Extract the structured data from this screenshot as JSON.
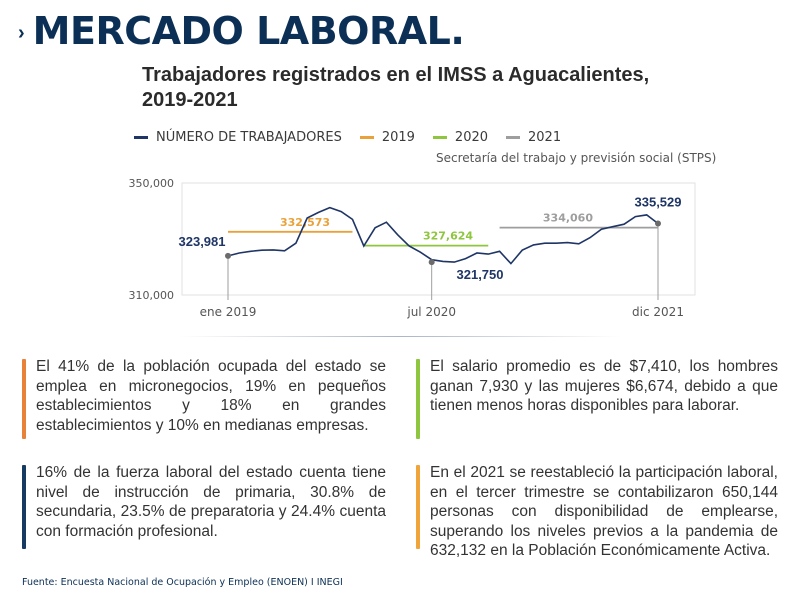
{
  "header": {
    "arrow": "›",
    "title": "MERCADO LABORAL."
  },
  "chart_title": "Trabajadores registrados en el IMSS a Aguacalientes, 2019-2021",
  "legend": [
    {
      "label": "NÚMERO DE TRABAJADORES",
      "color": "#1f3566"
    },
    {
      "label": "2019",
      "color": "#e9a23b"
    },
    {
      "label": "2020",
      "color": "#8fc63f"
    },
    {
      "label": "2021",
      "color": "#9e9e9e"
    }
  ],
  "source_label": "Secretaría del trabajo y previsión social (STPS)",
  "chart_data": {
    "type": "line",
    "title": "Trabajadores registrados en el IMSS a Aguacalientes, 2019-2021",
    "ylim": [
      310000,
      350000
    ],
    "y_ticks": [
      "350,000",
      "310,000"
    ],
    "x_ticks": [
      "ene 2019",
      "jul 2020",
      "dic 2021"
    ],
    "series": [
      {
        "name": "NÚMERO DE TRABAJADORES",
        "values": [
          323981,
          325000,
          325600,
          326000,
          326100,
          325800,
          328500,
          337500,
          339500,
          341200,
          339800,
          337000,
          327500,
          334000,
          336000,
          331500,
          327500,
          325300,
          322600,
          322000,
          321750,
          323000,
          325000,
          324600,
          325600,
          321200,
          326000,
          327900,
          328500,
          328500,
          328700,
          328300,
          330500,
          333500,
          334400,
          335300,
          338000,
          338600,
          335529
        ]
      }
    ],
    "averages": [
      {
        "year": "2019",
        "value": 332573,
        "label": "332,573",
        "color": "#e9a23b"
      },
      {
        "year": "2020",
        "value": 327624,
        "label": "327,624",
        "color": "#8fc63f"
      },
      {
        "year": "2021",
        "value": 334060,
        "label": "334,060",
        "color": "#9e9e9e"
      }
    ],
    "markers": [
      {
        "label": "323,981",
        "value": 323981,
        "tick": "ene 2019"
      },
      {
        "label": "321,750",
        "value": 321750,
        "tick": "jul 2020"
      },
      {
        "label": "335,529",
        "value": 335529,
        "tick": "dic 2021"
      }
    ]
  },
  "notes": {
    "top_left": {
      "text": "El 41% de la población ocupada del estado se emplea en micronegocios, 19% en pequeños establecimientos y 18% en grandes establecimientos y 10% en medianas empresas.",
      "color": "#e8823b"
    },
    "top_right": {
      "text": "El salario promedio  es de $7,410, los hombres ganan 7,930 y las mujeres $6,674, debido a que tienen menos horas disponibles para laborar.",
      "color": "#8fc63f"
    },
    "bottom_left": {
      "text": "16% de la fuerza laboral del estado cuenta tiene nivel de instrucción de primaria, 30.8% de secundaria, 23.5% de preparatoria y 24.4% cuenta con formación profesional.",
      "color": "#173a63"
    },
    "bottom_right": {
      "text": "En el 2021 se reestableció la participación laboral, en el tercer trimestre se contabilizaron 650,144 personas con disponibilidad de emplearse, superando los niveles previos a la pandemia de 632,132 en la Población Económicamente Activa.",
      "color": "#f0a53a"
    }
  },
  "footer": "Fuente: Encuesta Nacional de Ocupación y Empleo (ENOEN) I INEGI"
}
